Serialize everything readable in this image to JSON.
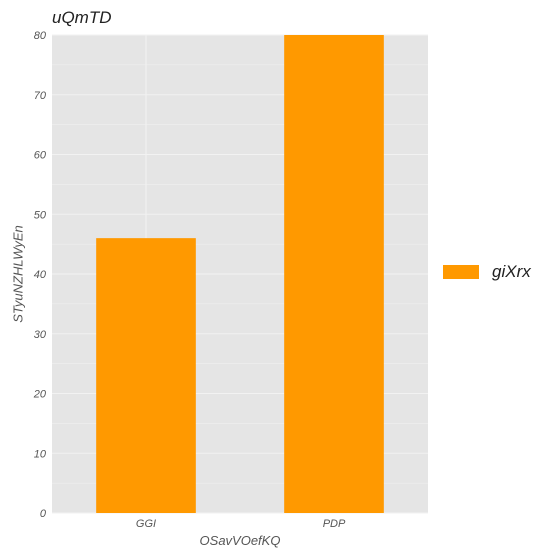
{
  "chart_data": {
    "type": "bar",
    "title": "uQmTD",
    "xlabel": "OSavVOefKQ",
    "ylabel": "STyuNZHLWyEn",
    "categories": [
      "GGI",
      "PDP"
    ],
    "series": [
      {
        "name": "giXrx",
        "values": [
          46,
          80
        ]
      }
    ],
    "ylim": [
      0,
      80
    ],
    "yticks": [
      0,
      10,
      20,
      30,
      40,
      50,
      60,
      70,
      80
    ],
    "grid": true,
    "legend_position": "right",
    "colors": {
      "bar": "#ff9900",
      "panel": "#e5e5e5",
      "grid": "#f2f2f2"
    }
  }
}
